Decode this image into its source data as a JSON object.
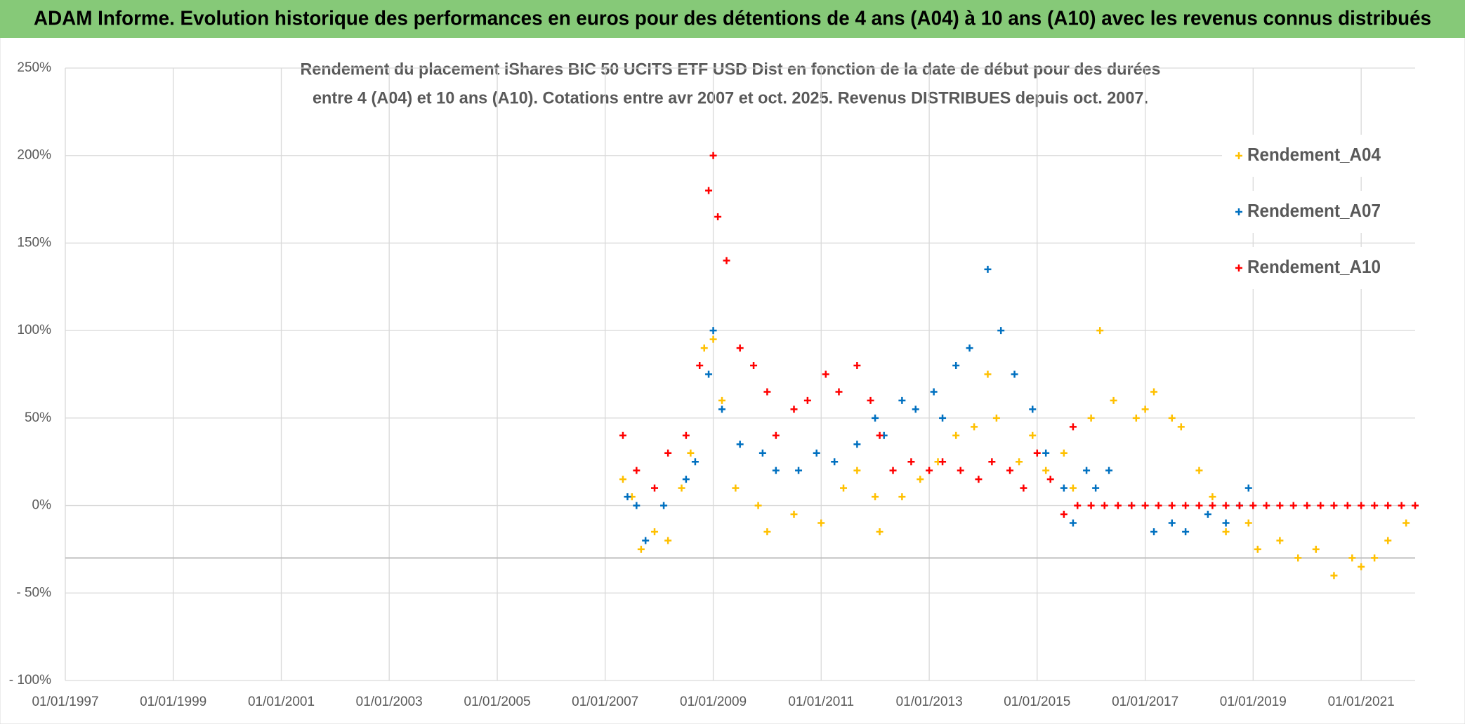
{
  "chart_data": {
    "type": "scatter",
    "header": "ADAM Informe. Evolution historique des performances en euros pour des détentions de 4 ans (A04) à 10 ans (A10) avec les revenus connus distribués",
    "title": [
      "Rendement du placement iShares BIC 50 UCITS ETF USD Dist en fonction de la date de début pour des durées",
      "entre 4 (A04) et 10 ans (A10). Cotations entre avr 2007 et oct. 2025. Revenus DISTRIBUES depuis oct. 2007."
    ],
    "xlim": [
      "1997-01-01",
      "2022-01-01"
    ],
    "xticks": [
      {
        "value": "1997-01-01",
        "label": "01/01/1997"
      },
      {
        "value": "1999-01-01",
        "label": "01/01/1999"
      },
      {
        "value": "2001-01-01",
        "label": "01/01/2001"
      },
      {
        "value": "2003-01-01",
        "label": "01/01/2003"
      },
      {
        "value": "2005-01-01",
        "label": "01/01/2005"
      },
      {
        "value": "2007-01-01",
        "label": "01/01/2007"
      },
      {
        "value": "2009-01-01",
        "label": "01/01/2009"
      },
      {
        "value": "2011-01-01",
        "label": "01/01/2011"
      },
      {
        "value": "2013-01-01",
        "label": "01/01/2013"
      },
      {
        "value": "2015-01-01",
        "label": "01/01/2015"
      },
      {
        "value": "2017-01-01",
        "label": "01/01/2017"
      },
      {
        "value": "2019-01-01",
        "label": "01/01/2019"
      },
      {
        "value": "2021-01-01",
        "label": "01/01/2021"
      }
    ],
    "ylim": [
      -100,
      250
    ],
    "yticks": [
      {
        "value": -100,
        "label": "- 100%"
      },
      {
        "value": -50,
        "label": "- 50%"
      },
      {
        "value": 0,
        "label": "0%"
      },
      {
        "value": 50,
        "label": "50%"
      },
      {
        "value": 100,
        "label": "100%"
      },
      {
        "value": 150,
        "label": "150%"
      },
      {
        "value": 200,
        "label": "200%"
      },
      {
        "value": 250,
        "label": "250%"
      }
    ],
    "x_axis_crosses_at": -30,
    "grid": true,
    "legend": "right",
    "series": [
      {
        "name": "Rendement_A04",
        "color": "#ffc000",
        "x": [
          "2007-05-01",
          "2007-07-01",
          "2007-09-01",
          "2007-12-01",
          "2008-03-01",
          "2008-06-01",
          "2008-08-01",
          "2008-11-01",
          "2009-01-01",
          "2009-03-01",
          "2009-06-01",
          "2009-11-01",
          "2010-01-01",
          "2010-07-01",
          "2011-01-01",
          "2011-06-01",
          "2011-09-01",
          "2012-01-01",
          "2012-02-01",
          "2012-07-01",
          "2012-11-01",
          "2013-03-01",
          "2013-07-01",
          "2013-11-01",
          "2014-02-01",
          "2014-04-01",
          "2014-09-01",
          "2014-12-01",
          "2015-03-01",
          "2015-07-01",
          "2015-09-01",
          "2016-01-01",
          "2016-03-01",
          "2016-06-01",
          "2016-11-01",
          "2017-01-01",
          "2017-03-01",
          "2017-07-01",
          "2017-09-01",
          "2018-01-01",
          "2018-04-01",
          "2018-07-01",
          "2018-12-01",
          "2019-02-01",
          "2019-07-01",
          "2019-11-01",
          "2020-03-01",
          "2020-07-01",
          "2020-11-01",
          "2021-01-01",
          "2021-04-01",
          "2021-07-01",
          "2021-11-01"
        ],
        "values": [
          15,
          5,
          -25,
          -15,
          -20,
          10,
          30,
          90,
          95,
          60,
          10,
          0,
          -15,
          -5,
          -10,
          10,
          20,
          5,
          -15,
          5,
          15,
          25,
          40,
          45,
          75,
          50,
          25,
          40,
          20,
          30,
          10,
          50,
          100,
          60,
          50,
          55,
          65,
          50,
          45,
          20,
          5,
          -15,
          -10,
          -25,
          -20,
          -30,
          -25,
          -40,
          -30,
          -35,
          -30,
          -20,
          -10
        ]
      },
      {
        "name": "Rendement_A07",
        "color": "#0070c0",
        "x": [
          "2007-06-01",
          "2007-08-01",
          "2007-10-01",
          "2008-02-01",
          "2008-07-01",
          "2008-09-01",
          "2008-12-01",
          "2009-01-01",
          "2009-03-01",
          "2009-07-01",
          "2009-12-01",
          "2010-03-01",
          "2010-08-01",
          "2010-12-01",
          "2011-04-01",
          "2011-09-01",
          "2012-01-01",
          "2012-03-01",
          "2012-07-01",
          "2012-10-01",
          "2013-02-01",
          "2013-04-01",
          "2013-07-01",
          "2013-10-01",
          "2014-02-01",
          "2014-05-01",
          "2014-08-01",
          "2014-12-01",
          "2015-03-01",
          "2015-07-01",
          "2015-09-01",
          "2015-12-01",
          "2016-02-01",
          "2016-05-01",
          "2016-10-01",
          "2017-03-01",
          "2017-07-01",
          "2017-10-01",
          "2018-03-01",
          "2018-07-01",
          "2018-10-01",
          "2018-12-01"
        ],
        "values": [
          5,
          0,
          -20,
          0,
          15,
          25,
          75,
          100,
          55,
          35,
          30,
          20,
          20,
          30,
          25,
          35,
          50,
          40,
          60,
          55,
          65,
          50,
          80,
          90,
          135,
          100,
          75,
          55,
          30,
          10,
          -10,
          20,
          10,
          20,
          0,
          -15,
          -10,
          -15,
          -5,
          -10,
          0,
          10
        ]
      },
      {
        "name": "Rendement_A10",
        "color": "#ff0000",
        "x": [
          "2007-05-01",
          "2007-08-01",
          "2007-12-01",
          "2008-03-01",
          "2008-07-01",
          "2008-10-01",
          "2008-12-01",
          "2009-01-01",
          "2009-02-01",
          "2009-04-01",
          "2009-07-01",
          "2009-10-01",
          "2010-01-01",
          "2010-03-01",
          "2010-07-01",
          "2010-10-01",
          "2011-02-01",
          "2011-05-01",
          "2011-09-01",
          "2011-12-01",
          "2012-02-01",
          "2012-05-01",
          "2012-09-01",
          "2013-01-01",
          "2013-04-01",
          "2013-08-01",
          "2013-12-01",
          "2014-03-01",
          "2014-07-01",
          "2014-10-01",
          "2015-01-01",
          "2015-04-01",
          "2015-07-01",
          "2015-09-01",
          "2015-10-01",
          "2016-01-01",
          "2016-04-01",
          "2016-07-01",
          "2016-10-01",
          "2017-01-01",
          "2017-04-01",
          "2017-07-01",
          "2017-10-01",
          "2018-01-01",
          "2018-04-01",
          "2018-07-01",
          "2018-10-01",
          "2019-01-01",
          "2019-04-01",
          "2019-07-01",
          "2019-10-01",
          "2020-01-01",
          "2020-04-01",
          "2020-07-01",
          "2020-10-01",
          "2021-01-01",
          "2021-04-01",
          "2021-07-01",
          "2021-10-01",
          "2022-01-01"
        ],
        "values": [
          40,
          20,
          10,
          30,
          40,
          80,
          180,
          200,
          165,
          140,
          90,
          80,
          65,
          40,
          55,
          60,
          75,
          65,
          80,
          60,
          40,
          20,
          25,
          20,
          25,
          20,
          15,
          25,
          20,
          10,
          30,
          15,
          -5,
          45,
          0,
          0,
          0,
          0,
          0,
          0,
          0,
          0,
          0,
          0,
          0,
          0,
          0,
          0,
          0,
          0,
          0,
          0,
          0,
          0,
          0,
          0,
          0,
          0,
          0,
          0
        ]
      }
    ]
  }
}
